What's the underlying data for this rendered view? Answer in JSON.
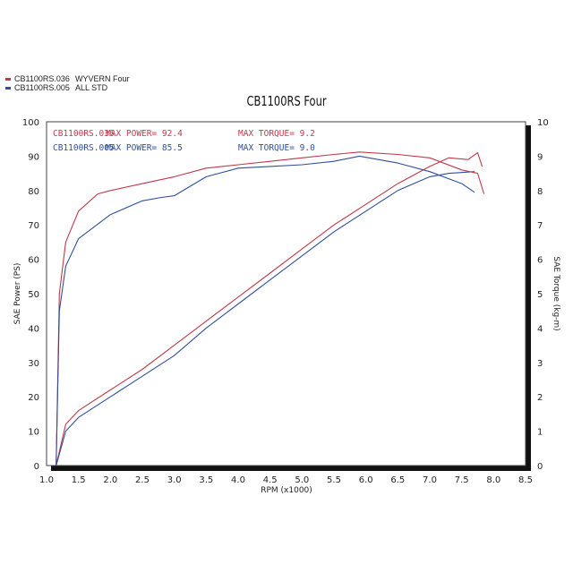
{
  "legend": {
    "items": [
      {
        "id": "CB1100RS.036",
        "label": "WYVERN Four",
        "color": "#c0394b"
      },
      {
        "id": "CB1100RS.005",
        "label": "ALL STD",
        "color": "#2f4f9a"
      }
    ]
  },
  "title": "CB1100RS Four",
  "info": {
    "rows": [
      {
        "id": "CB1100RS.036",
        "power_label": "MAX POWER= 92.4",
        "torque_label": "MAX TORQUE= 9.2",
        "color": "#c0394b"
      },
      {
        "id": "CB1100RS.005",
        "power_label": "MAX POWER= 85.5",
        "torque_label": "MAX TORQUE= 9.0",
        "color": "#2f4f9a"
      }
    ]
  },
  "axes": {
    "xlabel": "RPM (x1000)",
    "ylabel_left": "SAE Power (PS)",
    "ylabel_right": "SAE Torque (kg-m)"
  },
  "chart_data": {
    "type": "line",
    "title": "CB1100RS Four",
    "xlabel": "RPM (x1000)",
    "ylabel": "SAE Power (PS)",
    "ylabel_right": "SAE Torque (kg-m)",
    "xlim": [
      1.0,
      8.5
    ],
    "ylim": [
      0,
      100
    ],
    "ylim_right": [
      0,
      10
    ],
    "x_ticks": [
      "1.0",
      "1.5",
      "2.0",
      "2.5",
      "3.0",
      "3.5",
      "4.0",
      "4.5",
      "5.0",
      "5.5",
      "6.0",
      "6.5",
      "7.0",
      "7.5",
      "8.0",
      "8.5"
    ],
    "y_ticks_left": [
      "0",
      "10",
      "20",
      "30",
      "40",
      "50",
      "60",
      "70",
      "80",
      "90",
      "100"
    ],
    "y_ticks_right": [
      "0",
      "1",
      "2",
      "3",
      "4",
      "5",
      "6",
      "7",
      "8",
      "9",
      "10"
    ],
    "grid": true,
    "legend_position": "top-left outside",
    "annotations": [
      "CB1100RS.036 MAX POWER= 92.4",
      "MAX TORQUE= 9.2",
      "CB1100RS.005 MAX POWER= 85.5",
      "MAX TORQUE= 9.0"
    ],
    "series": [
      {
        "name": "CB1100RS.036 WYVERN Four - Power (PS)",
        "color": "#c0394b",
        "axis": "left",
        "x": [
          1.15,
          1.3,
          1.5,
          2.0,
          2.5,
          3.0,
          3.5,
          4.0,
          4.5,
          5.0,
          5.5,
          6.0,
          6.5,
          7.0,
          7.3,
          7.6,
          7.75,
          7.82
        ],
        "y": [
          0,
          12,
          16,
          22,
          28,
          35,
          42,
          49,
          56,
          63,
          70,
          76,
          82,
          87,
          89.5,
          89,
          91,
          87
        ]
      },
      {
        "name": "CB1100RS.005 ALL STD - Power (PS)",
        "color": "#2f4f9a",
        "axis": "left",
        "x": [
          1.15,
          1.3,
          1.5,
          2.0,
          2.5,
          3.0,
          3.5,
          4.0,
          4.5,
          5.0,
          5.5,
          6.0,
          6.5,
          7.0,
          7.3,
          7.7
        ],
        "y": [
          0,
          10,
          14,
          20,
          26,
          32,
          40,
          47,
          54,
          61,
          68,
          74,
          80,
          84,
          85,
          85.5
        ]
      },
      {
        "name": "CB1100RS.036 WYVERN Four - Torque (kg-m)",
        "color": "#c0394b",
        "axis": "right",
        "x": [
          1.15,
          1.2,
          1.3,
          1.5,
          1.8,
          2.0,
          2.5,
          3.0,
          3.5,
          4.0,
          4.5,
          5.0,
          5.5,
          5.9,
          6.5,
          7.0,
          7.5,
          7.75,
          7.85
        ],
        "y": [
          0,
          5.0,
          6.5,
          7.4,
          7.9,
          8.0,
          8.2,
          8.4,
          8.65,
          8.75,
          8.85,
          8.95,
          9.05,
          9.12,
          9.05,
          8.95,
          8.6,
          8.5,
          7.9
        ]
      },
      {
        "name": "CB1100RS.005 ALL STD - Torque (kg-m)",
        "color": "#2f4f9a",
        "axis": "right",
        "x": [
          1.15,
          1.2,
          1.3,
          1.5,
          2.0,
          2.5,
          2.8,
          3.0,
          3.5,
          4.0,
          4.5,
          5.0,
          5.5,
          5.9,
          6.5,
          7.0,
          7.5,
          7.7
        ],
        "y": [
          0,
          4.5,
          5.8,
          6.6,
          7.3,
          7.7,
          7.8,
          7.85,
          8.4,
          8.65,
          8.7,
          8.75,
          8.85,
          9.0,
          8.8,
          8.55,
          8.2,
          7.95
        ]
      }
    ]
  }
}
